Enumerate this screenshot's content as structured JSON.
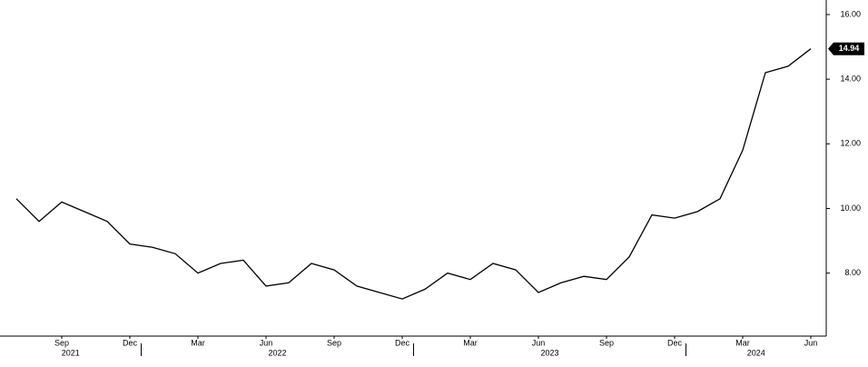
{
  "chart_data": {
    "type": "line",
    "color": "#000000",
    "x": [
      "2021-07",
      "2021-08",
      "2021-09",
      "2021-10",
      "2021-11",
      "2021-12",
      "2022-01",
      "2022-02",
      "2022-03",
      "2022-04",
      "2022-05",
      "2022-06",
      "2022-07",
      "2022-08",
      "2022-09",
      "2022-10",
      "2022-11",
      "2022-12",
      "2023-01",
      "2023-02",
      "2023-03",
      "2023-04",
      "2023-05",
      "2023-06",
      "2023-07",
      "2023-08",
      "2023-09",
      "2023-10",
      "2023-11",
      "2023-12",
      "2024-01",
      "2024-02",
      "2024-03",
      "2024-04",
      "2024-05",
      "2024-06"
    ],
    "values": [
      10.3,
      9.6,
      10.2,
      9.9,
      9.6,
      8.9,
      8.8,
      8.6,
      8.0,
      8.3,
      8.4,
      7.6,
      7.7,
      8.3,
      8.1,
      7.6,
      7.4,
      7.2,
      7.5,
      8.0,
      7.8,
      8.3,
      8.1,
      7.4,
      7.7,
      7.9,
      7.8,
      8.5,
      9.8,
      9.7,
      9.9,
      10.3,
      11.8,
      14.2,
      14.4,
      14.94
    ],
    "value_labels": [
      null,
      null,
      null,
      null,
      null,
      null,
      null,
      null,
      null,
      null,
      null,
      null,
      null,
      null,
      null,
      null,
      null,
      null,
      null,
      null,
      null,
      null,
      null,
      null,
      null,
      null,
      null,
      null,
      null,
      null,
      null,
      null,
      null,
      null,
      null,
      "14.94"
    ],
    "ylim": [
      6.05,
      16.45
    ],
    "yticks": [
      {
        "value": 8,
        "label": "8.00"
      },
      {
        "value": 10,
        "label": "10.00"
      },
      {
        "value": 12,
        "label": "12.00"
      },
      {
        "value": 14,
        "label": "14.00"
      },
      {
        "value": 16,
        "label": "16.00"
      }
    ],
    "xticks": [
      {
        "value": "2021-09",
        "label": "Sep"
      },
      {
        "value": "2021-12",
        "label": "Dec"
      },
      {
        "value": "2022-03",
        "label": "Mar"
      },
      {
        "value": "2022-06",
        "label": "Jun"
      },
      {
        "value": "2022-09",
        "label": "Sep"
      },
      {
        "value": "2022-12",
        "label": "Dec"
      },
      {
        "value": "2023-03",
        "label": "Mar"
      },
      {
        "value": "2023-06",
        "label": "Jun"
      },
      {
        "value": "2023-09",
        "label": "Sep"
      },
      {
        "value": "2023-12",
        "label": "Dec"
      },
      {
        "value": "2024-03",
        "label": "Mar"
      },
      {
        "value": "2024-06",
        "label": "Jun"
      }
    ],
    "year_labels": [
      "2021",
      "2022",
      "2023",
      "2024"
    ]
  }
}
